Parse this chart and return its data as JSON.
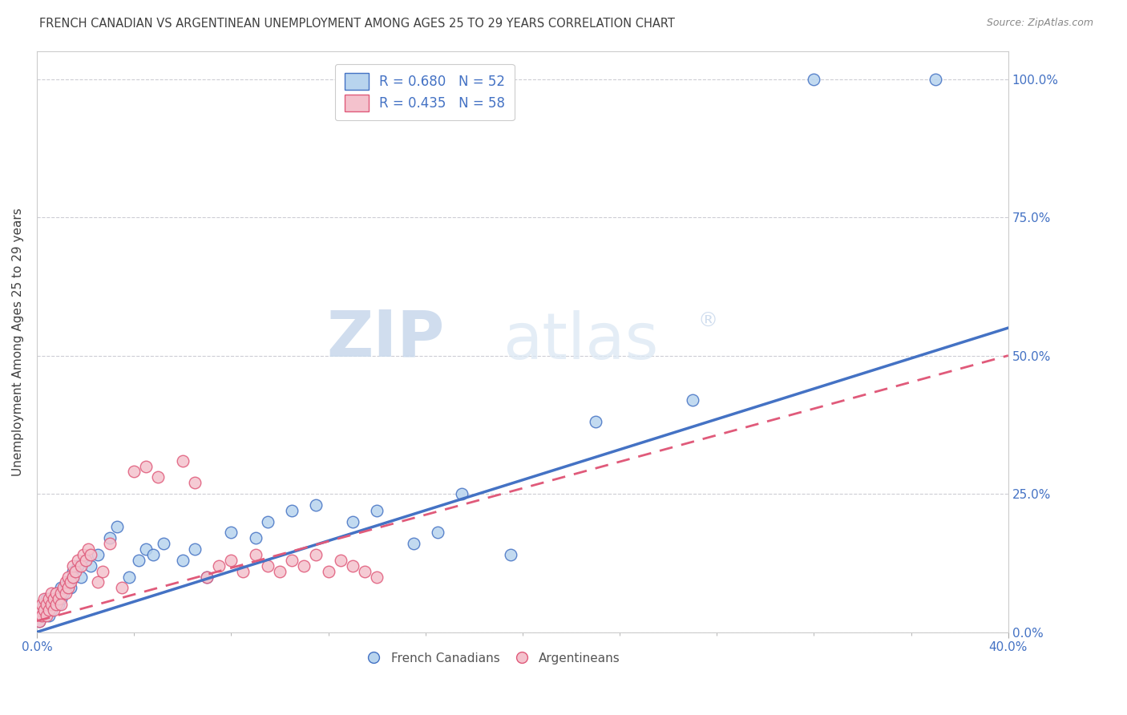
{
  "title": "FRENCH CANADIAN VS ARGENTINEAN UNEMPLOYMENT AMONG AGES 25 TO 29 YEARS CORRELATION CHART",
  "source": "Source: ZipAtlas.com",
  "ylabel": "Unemployment Among Ages 25 to 29 years",
  "xlim": [
    0.0,
    0.4
  ],
  "ylim": [
    0.0,
    1.05
  ],
  "x_ticks": [
    0.0,
    0.4
  ],
  "x_tick_labels": [
    "0.0%",
    "40.0%"
  ],
  "y_ticks": [
    0.0,
    0.25,
    0.5,
    0.75,
    1.0
  ],
  "y_tick_labels": [
    "0.0%",
    "25.0%",
    "50.0%",
    "75.0%",
    "100.0%"
  ],
  "french_canadians": {
    "color": "#b8d4ee",
    "edge_color": "#4472c4",
    "R": 0.68,
    "N": 52,
    "x": [
      0.001,
      0.002,
      0.002,
      0.003,
      0.003,
      0.004,
      0.004,
      0.005,
      0.005,
      0.006,
      0.007,
      0.008,
      0.008,
      0.009,
      0.01,
      0.01,
      0.011,
      0.012,
      0.013,
      0.014,
      0.015,
      0.015,
      0.017,
      0.018,
      0.02,
      0.022,
      0.025,
      0.03,
      0.033,
      0.038,
      0.042,
      0.045,
      0.048,
      0.052,
      0.06,
      0.065,
      0.07,
      0.08,
      0.09,
      0.095,
      0.105,
      0.115,
      0.13,
      0.14,
      0.155,
      0.165,
      0.175,
      0.195,
      0.23,
      0.27,
      0.32,
      0.37
    ],
    "y": [
      0.02,
      0.03,
      0.04,
      0.03,
      0.05,
      0.04,
      0.06,
      0.03,
      0.05,
      0.04,
      0.05,
      0.06,
      0.07,
      0.05,
      0.06,
      0.08,
      0.07,
      0.08,
      0.09,
      0.08,
      0.1,
      0.11,
      0.12,
      0.1,
      0.13,
      0.12,
      0.14,
      0.17,
      0.19,
      0.1,
      0.13,
      0.15,
      0.14,
      0.16,
      0.13,
      0.15,
      0.1,
      0.18,
      0.17,
      0.2,
      0.22,
      0.23,
      0.2,
      0.22,
      0.16,
      0.18,
      0.25,
      0.14,
      0.38,
      0.42,
      1.0,
      1.0
    ]
  },
  "argentineans": {
    "color": "#f4c2cd",
    "edge_color": "#e05a7a",
    "R": 0.435,
    "N": 58,
    "x": [
      0.001,
      0.001,
      0.002,
      0.002,
      0.003,
      0.003,
      0.004,
      0.004,
      0.005,
      0.005,
      0.006,
      0.006,
      0.007,
      0.007,
      0.008,
      0.008,
      0.009,
      0.01,
      0.01,
      0.011,
      0.012,
      0.012,
      0.013,
      0.013,
      0.014,
      0.015,
      0.015,
      0.016,
      0.017,
      0.018,
      0.019,
      0.02,
      0.021,
      0.022,
      0.025,
      0.027,
      0.03,
      0.035,
      0.04,
      0.045,
      0.05,
      0.06,
      0.065,
      0.07,
      0.075,
      0.08,
      0.085,
      0.09,
      0.095,
      0.1,
      0.105,
      0.11,
      0.115,
      0.12,
      0.125,
      0.13,
      0.135,
      0.14
    ],
    "y": [
      0.02,
      0.04,
      0.03,
      0.05,
      0.04,
      0.06,
      0.03,
      0.05,
      0.04,
      0.06,
      0.05,
      0.07,
      0.04,
      0.06,
      0.05,
      0.07,
      0.06,
      0.07,
      0.05,
      0.08,
      0.07,
      0.09,
      0.08,
      0.1,
      0.09,
      0.1,
      0.12,
      0.11,
      0.13,
      0.12,
      0.14,
      0.13,
      0.15,
      0.14,
      0.09,
      0.11,
      0.16,
      0.08,
      0.29,
      0.3,
      0.28,
      0.31,
      0.27,
      0.1,
      0.12,
      0.13,
      0.11,
      0.14,
      0.12,
      0.11,
      0.13,
      0.12,
      0.14,
      0.11,
      0.13,
      0.12,
      0.11,
      0.1
    ]
  },
  "watermark_zip": "ZIP",
  "watermark_atlas": "atlas",
  "watermark_reg": "®",
  "background_color": "#ffffff",
  "grid_color": "#c8c8d0",
  "title_color": "#404040",
  "axis_label_color": "#404040",
  "tick_color": "#4472c4",
  "legend_color": "#4472c4"
}
